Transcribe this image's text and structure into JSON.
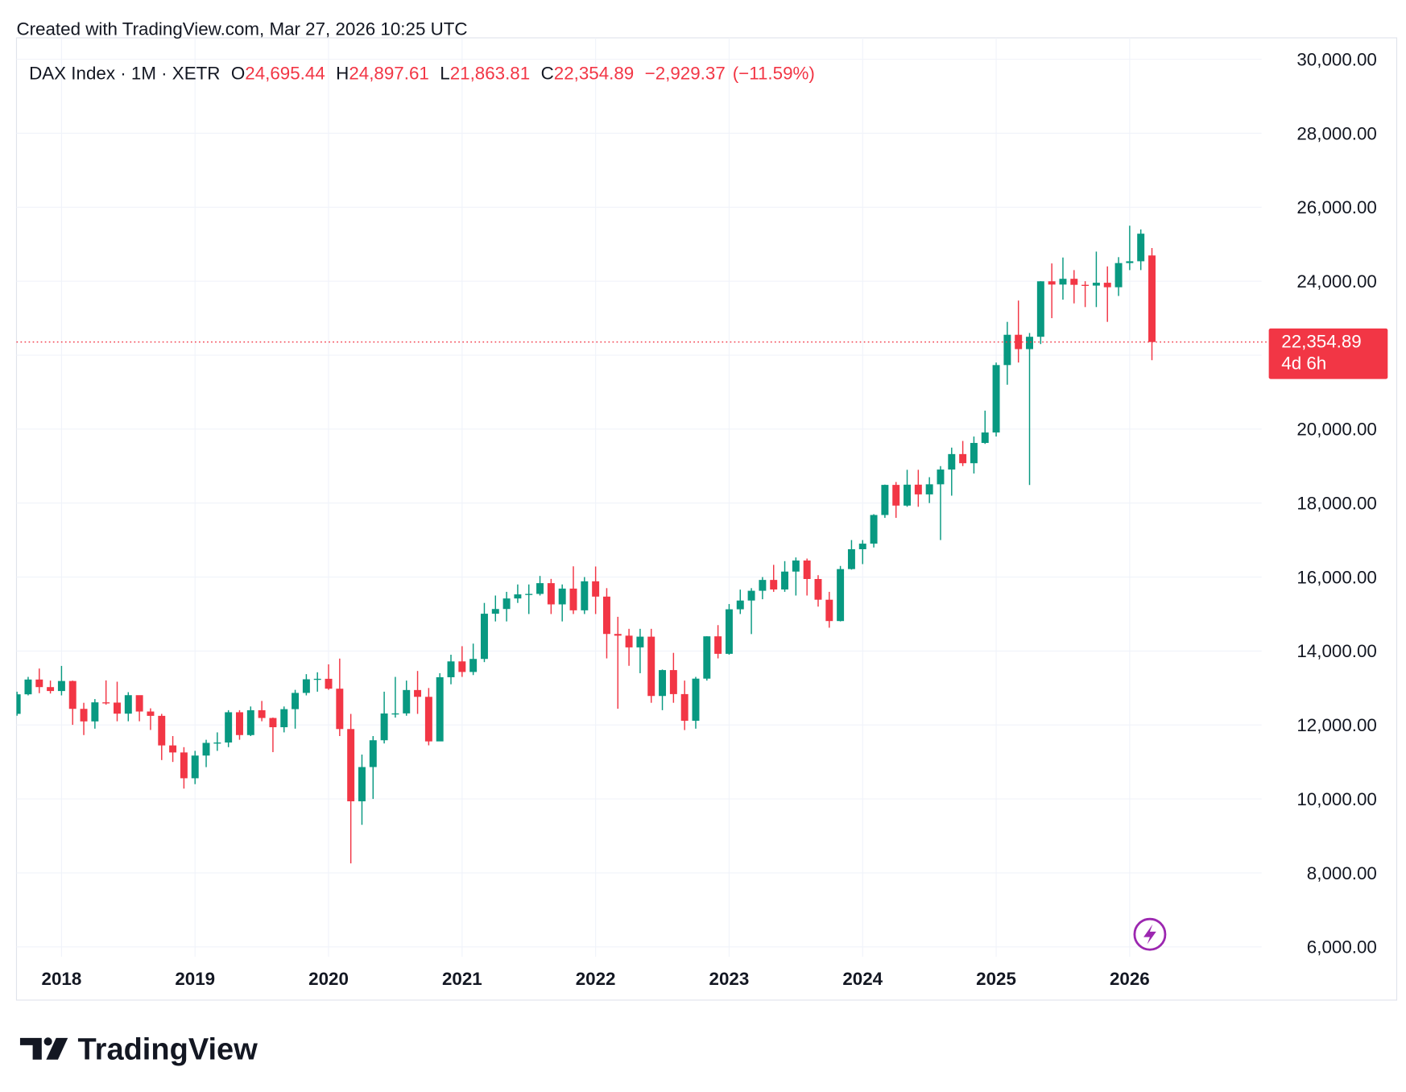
{
  "header": {
    "created": "Created with TradingView.com, Mar 27, 2026 10:25 UTC"
  },
  "chart_data": {
    "type": "candlestick",
    "symbol": "DAX Index · 1M · XETR",
    "legend": {
      "open_label": "O",
      "open": "24,695.44",
      "high_label": "H",
      "high": "24,897.61",
      "low_label": "L",
      "low": "21,863.81",
      "close_label": "C",
      "close": "22,354.89",
      "change": "−2,929.37",
      "change_percent": "(−11.59%)"
    },
    "x": [
      "2017-09",
      "2017-10",
      "2017-11",
      "2017-12",
      "2018-01",
      "2018-02",
      "2018-03",
      "2018-04",
      "2018-05",
      "2018-06",
      "2018-07",
      "2018-08",
      "2018-09",
      "2018-10",
      "2018-11",
      "2018-12",
      "2019-01",
      "2019-02",
      "2019-03",
      "2019-04",
      "2019-05",
      "2019-06",
      "2019-07",
      "2019-08",
      "2019-09",
      "2019-10",
      "2019-11",
      "2019-12",
      "2020-01",
      "2020-02",
      "2020-03",
      "2020-04",
      "2020-05",
      "2020-06",
      "2020-07",
      "2020-08",
      "2020-09",
      "2020-10",
      "2020-11",
      "2020-12",
      "2021-01",
      "2021-02",
      "2021-03",
      "2021-04",
      "2021-05",
      "2021-06",
      "2021-07",
      "2021-08",
      "2021-09",
      "2021-10",
      "2021-11",
      "2021-12",
      "2022-01",
      "2022-02",
      "2022-03",
      "2022-04",
      "2022-05",
      "2022-06",
      "2022-07",
      "2022-08",
      "2022-09",
      "2022-10",
      "2022-11",
      "2022-12",
      "2023-01",
      "2023-02",
      "2023-03",
      "2023-04",
      "2023-05",
      "2023-06",
      "2023-07",
      "2023-08",
      "2023-09",
      "2023-10",
      "2023-11",
      "2023-12",
      "2024-01",
      "2024-02",
      "2024-03",
      "2024-04",
      "2024-05",
      "2024-06",
      "2024-07",
      "2024-08",
      "2024-09",
      "2024-10",
      "2024-11",
      "2024-12",
      "2025-01",
      "2025-02",
      "2025-03",
      "2025-04",
      "2025-05",
      "2025-06",
      "2025-07",
      "2025-08",
      "2025-09",
      "2025-10",
      "2025-11",
      "2025-12",
      "2026-01",
      "2026-02",
      "2026-03"
    ],
    "open": [
      12300,
      12829,
      13229,
      13024,
      12918,
      13189,
      12436,
      12097,
      12612,
      12605,
      12306,
      12806,
      12364,
      12247,
      11447,
      11257,
      10559,
      11173,
      11516,
      11526,
      12344,
      11727,
      12399,
      12189,
      11939,
      12428,
      12867,
      13236,
      13249,
      12981,
      11890,
      9936,
      10862,
      11587,
      12311,
      12313,
      12945,
      12761,
      11556,
      13291,
      13719,
      13433,
      13786,
      15008,
      15136,
      15421,
      15531,
      15544,
      15835,
      15261,
      15688,
      15100,
      15885,
      15471,
      14461,
      14415,
      14098,
      14388,
      12784,
      13484,
      12835,
      12114,
      13253,
      14397,
      13924,
      15128,
      15365,
      15629,
      15922,
      15664,
      16148,
      16447,
      15947,
      15387,
      14810,
      16215,
      16752,
      16903,
      17678,
      18492,
      17932,
      18498,
      18235,
      18508,
      18907,
      19325,
      19078,
      19626,
      19909,
      21732,
      22551,
      22163,
      22497,
      23997,
      23909,
      24065,
      23902,
      23881,
      23958,
      23836,
      24490,
      24539,
      24695.44
    ],
    "high": [
      12900,
      13300,
      13526,
      13200,
      13597,
      13200,
      12600,
      12700,
      13205,
      13170,
      12887,
      12800,
      12450,
      12300,
      11700,
      11400,
      11300,
      11600,
      11800,
      12400,
      12400,
      12500,
      12650,
      12200,
      12500,
      12950,
      13374,
      13425,
      13640,
      13795,
      12300,
      11200,
      11700,
      12900,
      13300,
      13200,
      13460,
      13000,
      13400,
      13900,
      14130,
      14200,
      15300,
      15500,
      15600,
      15800,
      15800,
      16030,
      15950,
      15800,
      16290,
      16000,
      16285,
      15700,
      14925,
      14600,
      14600,
      14600,
      13500,
      13950,
      13200,
      13300,
      14400,
      14700,
      15270,
      15660,
      15700,
      16000,
      16330,
      16430,
      16530,
      16500,
      16050,
      15600,
      16300,
      17000,
      17000,
      17700,
      18500,
      18570,
      18900,
      18900,
      18700,
      19000,
      19500,
      19680,
      19800,
      20500,
      21800,
      22900,
      23476,
      22600,
      24000,
      24480,
      24640,
      24300,
      24000,
      24800,
      24400,
      24650,
      25500,
      25400,
      24897.61
    ],
    "low": [
      12250,
      12800,
      12860,
      12850,
      12800,
      12003,
      11727,
      11900,
      12550,
      12100,
      12100,
      12100,
      11865,
      11051,
      11000,
      10279,
      10400,
      10860,
      11300,
      11400,
      11600,
      11700,
      12100,
      11266,
      11800,
      11900,
      12800,
      12900,
      12950,
      11700,
      8256,
      9300,
      10000,
      11500,
      12200,
      12250,
      12300,
      11450,
      11600,
      13100,
      13300,
      13350,
      13700,
      14800,
      14800,
      15300,
      15000,
      15500,
      15000,
      14800,
      15000,
      15000,
      15000,
      13800,
      12439,
      13600,
      13400,
      12600,
      12400,
      12600,
      11862,
      11900,
      13200,
      13800,
      13900,
      15000,
      14458,
      15400,
      15600,
      15600,
      15500,
      15500,
      15200,
      14630,
      14800,
      16200,
      16350,
      16800,
      17600,
      17600,
      17900,
      17900,
      18000,
      17000,
      18200,
      19000,
      18800,
      19600,
      19800,
      21200,
      21800,
      18490,
      22300,
      23000,
      23500,
      23400,
      23300,
      23300,
      22900,
      23600,
      24300,
      24300,
      21863.81
    ],
    "close": [
      12829,
      13229,
      13024,
      12918,
      13189,
      12436,
      12097,
      12612,
      12605,
      12306,
      12806,
      12364,
      12247,
      11447,
      11257,
      10559,
      11173,
      11516,
      11526,
      12344,
      11727,
      12399,
      12189,
      11939,
      12428,
      12867,
      13236,
      13249,
      12981,
      11890,
      9936,
      10862,
      11587,
      12311,
      12313,
      12945,
      12761,
      11556,
      13291,
      13719,
      13433,
      13786,
      15008,
      15136,
      15421,
      15531,
      15544,
      15835,
      15261,
      15688,
      15100,
      15885,
      15471,
      14461,
      14415,
      14098,
      14388,
      12784,
      13484,
      12835,
      12114,
      13253,
      14397,
      13924,
      15128,
      15365,
      15629,
      15922,
      15664,
      16148,
      16447,
      15947,
      15387,
      14810,
      16215,
      16752,
      16903,
      17678,
      18492,
      17932,
      18498,
      18235,
      18508,
      18907,
      19325,
      19078,
      19626,
      19909,
      21732,
      22551,
      22163,
      22497,
      23997,
      23909,
      24065,
      23902,
      23881,
      23958,
      23836,
      24490,
      24539,
      25284.26,
      22354.89
    ],
    "up_color": "#089981",
    "down_color": "#f23645",
    "ylim": [
      5730,
      30580
    ],
    "yticks": [
      {
        "value": 6000,
        "label": "6,000.00"
      },
      {
        "value": 8000,
        "label": "8,000.00"
      },
      {
        "value": 10000,
        "label": "10,000.00"
      },
      {
        "value": 12000,
        "label": "12,000.00"
      },
      {
        "value": 14000,
        "label": "14,000.00"
      },
      {
        "value": 16000,
        "label": "16,000.00"
      },
      {
        "value": 18000,
        "label": "18,000.00"
      },
      {
        "value": 20000,
        "label": "20,000.00"
      },
      {
        "value": 22000,
        "label": "22,000.00"
      },
      {
        "value": 24000,
        "label": "24,000.00"
      },
      {
        "value": 26000,
        "label": "26,000.00"
      },
      {
        "value": 28000,
        "label": "28,000.00"
      },
      {
        "value": 30000,
        "label": "30,000.00"
      }
    ],
    "xticks": [
      {
        "value": "2018-01",
        "label": "2018"
      },
      {
        "value": "2019-01",
        "label": "2019"
      },
      {
        "value": "2020-01",
        "label": "2020"
      },
      {
        "value": "2021-01",
        "label": "2021"
      },
      {
        "value": "2022-01",
        "label": "2022"
      },
      {
        "value": "2023-01",
        "label": "2023"
      },
      {
        "value": "2024-01",
        "label": "2024"
      },
      {
        "value": "2025-01",
        "label": "2025"
      },
      {
        "value": "2026-01",
        "label": "2026"
      }
    ],
    "grid": true,
    "last_price": {
      "label": "22,354.89",
      "countdown": "4d 6h"
    }
  },
  "footer": {
    "logo": "TradingView"
  }
}
